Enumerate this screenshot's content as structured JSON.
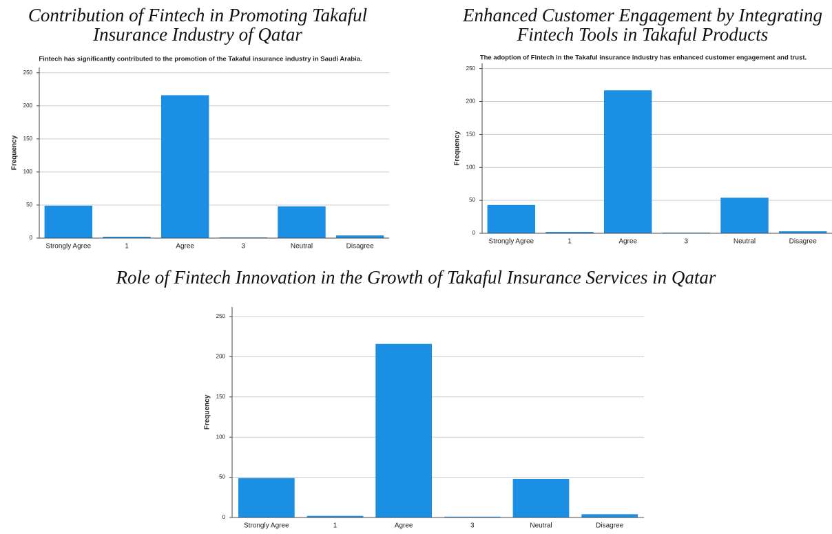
{
  "chart_data": [
    {
      "type": "bar",
      "title": "Contribution of Fintech in Promoting Takaful Insurance Industry of Qatar",
      "subtitle": "Fintech has significantly contributed to the promotion of the Takaful insurance industry in Saudi Arabia.",
      "ylabel": "Frequency",
      "categories": [
        "Strongly Agree",
        "1",
        "Agree",
        "3",
        "Neutral",
        "Disagree"
      ],
      "values": [
        49,
        2,
        216,
        1,
        48,
        4
      ],
      "color": "#1a8fe3",
      "ylim": [
        0,
        258
      ],
      "yticks": [
        0,
        50,
        100,
        150,
        200,
        250
      ],
      "grid": true
    },
    {
      "type": "bar",
      "title": "Enhanced Customer Engagement by Integrating Fintech Tools in Takaful Products",
      "subtitle": "The adoption of Fintech in the Takaful insurance industry has enhanced customer engagement and trust.",
      "ylabel": "Frequency",
      "categories": [
        "Strongly Agree",
        "1",
        "Agree",
        "3",
        "Neutral",
        "Disagree"
      ],
      "values": [
        43,
        2,
        217,
        1,
        54,
        3
      ],
      "color": "#1a8fe3",
      "ylim": [
        0,
        258
      ],
      "yticks": [
        0,
        50,
        100,
        150,
        200,
        250
      ],
      "grid": true
    },
    {
      "type": "bar",
      "title": "Role of Fintech Innovation in the Growth of Takaful Insurance Services in Qatar",
      "ylabel": "Frequency",
      "categories": [
        "Strongly Agree",
        "1",
        "Agree",
        "3",
        "Neutral",
        "Disagree"
      ],
      "values": [
        49,
        2,
        216,
        1,
        48,
        4
      ],
      "color": "#1a8fe3",
      "ylim": [
        0,
        262
      ],
      "yticks": [
        0,
        50,
        100,
        150,
        200,
        250
      ],
      "grid": true
    }
  ]
}
